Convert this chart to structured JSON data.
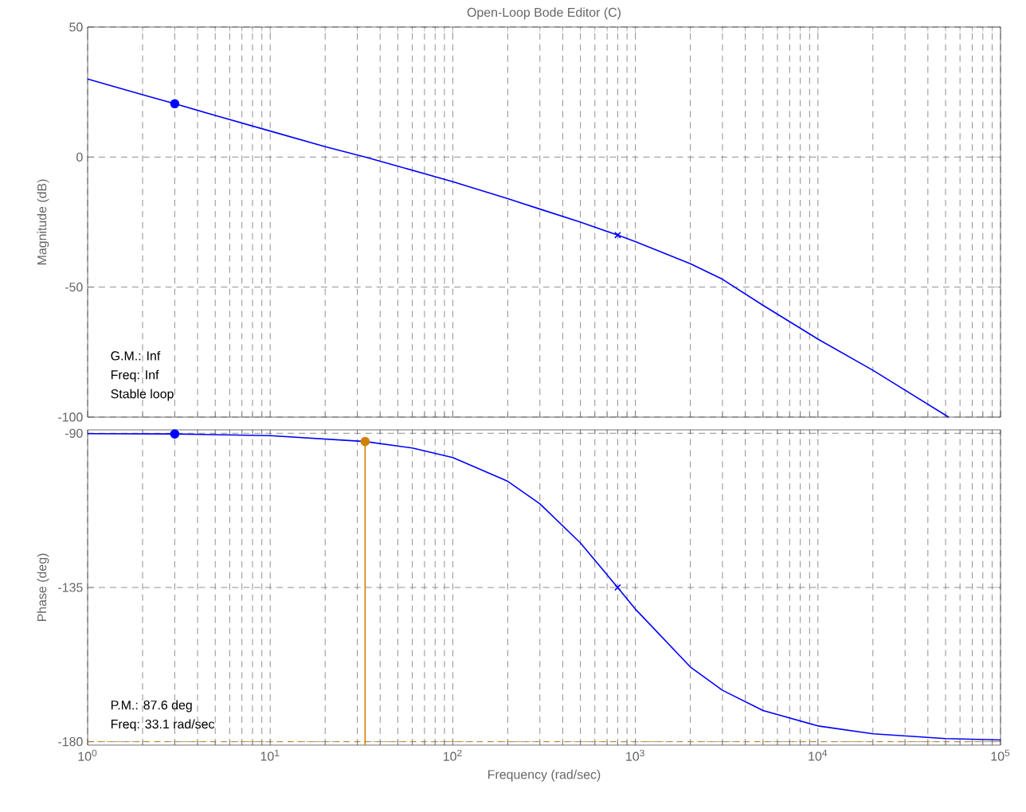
{
  "chart_data": [
    {
      "type": "line",
      "title": "Open-Loop Bode Editor (C)",
      "ylabel": "Magnitude (dB)",
      "log": "x",
      "grid": true,
      "tick_labels": "y",
      "xlim": [
        1,
        100000
      ],
      "xticks": [
        {
          "value": 1,
          "label": null
        },
        {
          "value": 10,
          "label": null
        },
        {
          "value": 100,
          "label": null
        },
        {
          "value": 1000,
          "label": null
        },
        {
          "value": 10000,
          "label": null
        },
        {
          "value": 100000,
          "label": null
        }
      ],
      "ylim": [
        -100,
        50
      ],
      "yticks": [
        -100,
        -50,
        0,
        50
      ],
      "annotations": [
        "G.M.: Inf",
        "Freq: Inf",
        "Stable loop"
      ],
      "series": [
        {
          "color": "#0000ff",
          "x": [
            1,
            2,
            3,
            5,
            10,
            20,
            33.1,
            50,
            100,
            200,
            300,
            500,
            800,
            1000,
            2000,
            3000,
            5000,
            10000,
            20000,
            52000
          ],
          "values": [
            30,
            24,
            20.5,
            16,
            10,
            4,
            0,
            -3.5,
            -9.5,
            -16,
            -20,
            -25,
            -30,
            -32.5,
            -41,
            -47,
            -57,
            -70,
            -82,
            -100
          ]
        },
        {
          "type": "scatter",
          "marker": "circle",
          "color": "#0000ff",
          "x": [
            3
          ],
          "values": [
            20.5
          ]
        },
        {
          "type": "scatter",
          "marker": "cross",
          "color": "#0000ff",
          "x": [
            800
          ],
          "values": [
            -30
          ]
        }
      ]
    },
    {
      "type": "line",
      "xlabel": "Frequency (rad/sec)",
      "ylabel": "Phase (deg)",
      "log": "x",
      "grid": true,
      "xlim": [
        1,
        100000
      ],
      "xticks": [
        {
          "value": 1,
          "label": "10$^{0}$"
        },
        {
          "value": 10,
          "label": "10$^{1}$"
        },
        {
          "value": 100,
          "label": "10$^{2}$"
        },
        {
          "value": 1000,
          "label": "10$^{3}$"
        },
        {
          "value": 10000,
          "label": "10$^{4}$"
        },
        {
          "value": 100000,
          "label": "10$^{5}$"
        }
      ],
      "ylim": [
        -181,
        -89
      ],
      "yticks": [
        -180,
        -135,
        -90
      ],
      "annotations": [
        "P.M.: 87.6 deg",
        "Freq: 33.1 rad/sec"
      ],
      "ref_lines": [
        {
          "axis": "y",
          "value": -180,
          "color": "#d08000",
          "line_style": "dashed"
        }
      ],
      "series": [
        {
          "color": "#0000ff",
          "x": [
            1,
            3,
            10,
            33.1,
            60,
            100,
            200,
            300,
            500,
            800,
            1000,
            2000,
            3000,
            5000,
            10000,
            20000,
            50000,
            100000
          ],
          "values": [
            -90.1,
            -90.2,
            -90.7,
            -92.4,
            -94.3,
            -97.1,
            -104,
            -110.6,
            -122,
            -135,
            -141.3,
            -158.2,
            -165,
            -170.9,
            -175.4,
            -177.7,
            -179.1,
            -179.5
          ]
        },
        {
          "type": "line",
          "color": "#d08000",
          "x": [
            33.1,
            33.1
          ],
          "values": [
            -92.4,
            -181
          ]
        },
        {
          "type": "scatter",
          "marker": "circle",
          "color": "#0000ff",
          "x": [
            3
          ],
          "values": [
            -90.2
          ]
        },
        {
          "type": "scatter",
          "marker": "cross",
          "color": "#0000ff",
          "x": [
            800
          ],
          "values": [
            -135
          ]
        },
        {
          "type": "scatter",
          "marker": "circle",
          "color": "#d08000",
          "x": [
            33.1
          ],
          "values": [
            -92.4
          ]
        }
      ]
    }
  ]
}
